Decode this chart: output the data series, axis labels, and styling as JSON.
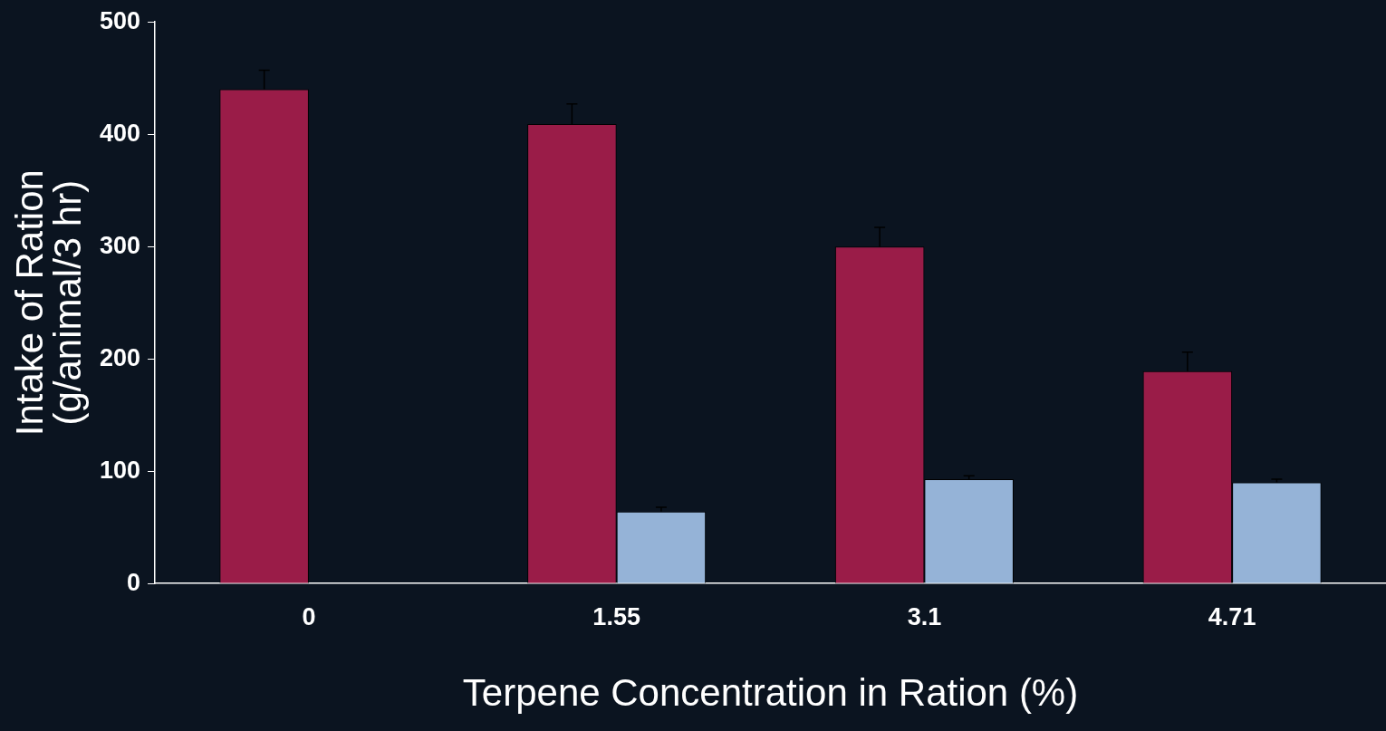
{
  "chart_data": {
    "type": "bar",
    "xlabel": "Terpene Concentration in Ration (%)",
    "ylabel": "Intake of Ration\n(g/animal/3 hr)",
    "categories": [
      "0",
      "1.55",
      "3.1",
      "4.71"
    ],
    "series": [
      {
        "color": "#9a1c48",
        "values": [
          440,
          409,
          300,
          189
        ],
        "errors": [
          [
            440,
            457
          ],
          [
            409,
            427
          ],
          [
            300,
            317
          ],
          [
            189,
            206
          ]
        ]
      },
      {
        "color": "#95b3d7",
        "values": [
          null,
          64,
          93,
          90
        ],
        "errors": [
          null,
          [
            64,
            68
          ],
          [
            93,
            96
          ],
          [
            90,
            93
          ]
        ]
      }
    ],
    "ylim": [
      0,
      500
    ],
    "yticks": [
      0,
      100,
      200,
      300,
      400,
      500
    ],
    "grid": false,
    "legend": false
  }
}
